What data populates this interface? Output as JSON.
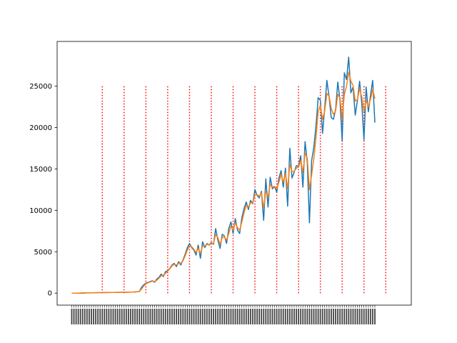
{
  "chart_data": {
    "type": "line",
    "title": "",
    "xlabel": "",
    "ylabel": "",
    "ylim": [
      -1450,
      30400
    ],
    "yticks": [
      0,
      5000,
      10000,
      15000,
      20000,
      25000
    ],
    "ytick_labels": [
      "0",
      "5000",
      "10000",
      "15000",
      "20000",
      "25000"
    ],
    "grid": false,
    "legend": "none",
    "x_index_range": [
      0,
      149
    ],
    "series": [
      {
        "color": "#1f77b4",
        "style": "solid",
        "values": [
          0,
          0,
          0,
          0,
          0,
          0,
          20,
          30,
          30,
          40,
          40,
          50,
          55,
          60,
          60,
          70,
          70,
          75,
          80,
          85,
          90,
          90,
          95,
          100,
          100,
          100,
          110,
          120,
          130,
          150,
          170,
          200,
          700,
          1000,
          1200,
          1300,
          1400,
          1500,
          1300,
          1700,
          1900,
          2300,
          2000,
          2600,
          2700,
          3000,
          3400,
          3600,
          3200,
          3800,
          3400,
          4000,
          4700,
          5500,
          6000,
          5500,
          5200,
          4600,
          5800,
          4200,
          6200,
          5500,
          6000,
          5800,
          6100,
          5900,
          7800,
          6400,
          5400,
          7100,
          6900,
          6000,
          7800,
          8600,
          7200,
          9000,
          7600,
          7200,
          9100,
          10200,
          11000,
          10100,
          11200,
          10800,
          12500,
          11800,
          11500,
          12300,
          8800,
          13800,
          10400,
          14000,
          12600,
          12900,
          12200,
          13900,
          14800,
          12800,
          15100,
          10500,
          17500,
          13900,
          14600,
          15400,
          15300,
          16600,
          12800,
          18300,
          15800,
          8500,
          16000,
          17600,
          20200,
          23600,
          23300,
          19300,
          22400,
          25700,
          23700,
          21200,
          21000,
          22200,
          25500,
          23300,
          18400,
          26600,
          25800,
          28500,
          24200,
          24900,
          21500,
          23300,
          25600,
          22900,
          18500,
          24900,
          21900,
          23900,
          25700,
          20600
        ]
      },
      {
        "color": "#ff7f0e",
        "style": "solid",
        "values": [
          0,
          0,
          0,
          10,
          20,
          25,
          30,
          35,
          40,
          45,
          48,
          52,
          55,
          58,
          62,
          66,
          70,
          74,
          78,
          82,
          86,
          90,
          94,
          98,
          100,
          105,
          112,
          120,
          130,
          145,
          160,
          190,
          500,
          850,
          1100,
          1250,
          1350,
          1450,
          1400,
          1550,
          1800,
          2100,
          2150,
          2400,
          2650,
          2950,
          3300,
          3500,
          3400,
          3600,
          3600,
          3900,
          4500,
          5200,
          5700,
          5600,
          5300,
          4900,
          5400,
          4800,
          5700,
          5700,
          5900,
          5800,
          6000,
          6000,
          7100,
          6700,
          5900,
          6700,
          6800,
          6400,
          7200,
          8100,
          7600,
          8500,
          7900,
          7600,
          8600,
          9700,
          10600,
          10400,
          10900,
          10900,
          11900,
          11900,
          11700,
          12100,
          10300,
          12300,
          11600,
          13100,
          12800,
          12900,
          12600,
          13400,
          14300,
          13400,
          14500,
          12600,
          15500,
          14700,
          14700,
          15100,
          15200,
          16000,
          14600,
          16900,
          16300,
          12500,
          14300,
          16200,
          18800,
          22000,
          22700,
          21000,
          22000,
          24100,
          23800,
          22300,
          21600,
          22000,
          24000,
          23600,
          21000,
          24000,
          25000,
          26700,
          25600,
          25100,
          23200,
          23400,
          24700,
          23700,
          21900,
          23300,
          22500,
          23400,
          24600,
          23500
        ]
      }
    ],
    "vlines": {
      "color": "#ff0000",
      "style": "dotted",
      "y_range": [
        0,
        25000
      ],
      "x_index": [
        14,
        24,
        34,
        44,
        54,
        64,
        74,
        84,
        94,
        104,
        114,
        124,
        134,
        144
      ]
    },
    "xtick_labels_note": "rotated, illegible daily date labels"
  }
}
